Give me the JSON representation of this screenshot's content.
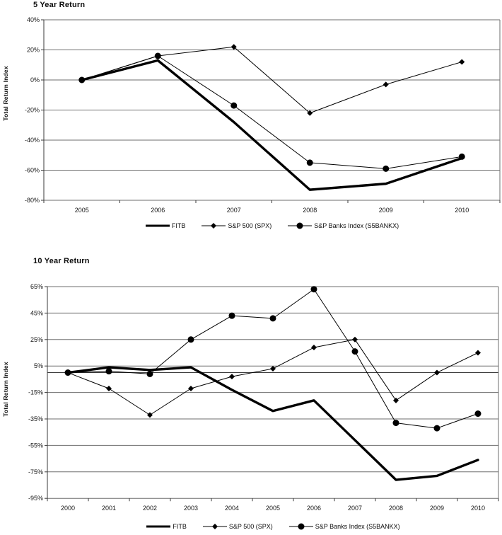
{
  "colors": {
    "series": "#000000",
    "grid": "#6e6e6e",
    "axis": "#3a3a3a",
    "text": "#161616",
    "background": "#ffffff"
  },
  "chart_data": [
    {
      "type": "line",
      "title": "5 Year Return",
      "ylabel": "Total Return Index",
      "xlabel": "",
      "categories": [
        "2005",
        "2006",
        "2007",
        "2008",
        "2009",
        "2010"
      ],
      "yticks": [
        40,
        20,
        0,
        -20,
        -40,
        -60,
        -80
      ],
      "ylim": [
        -80,
        40
      ],
      "ytick_format": "percent",
      "grid": true,
      "zero_line": false,
      "legend_position": "bottom",
      "series": [
        {
          "name": "FITB",
          "marker": "none",
          "line": "thick",
          "values": [
            0,
            13,
            -28,
            -73,
            -69,
            -52
          ]
        },
        {
          "name": "S&P 500 (SPX)",
          "marker": "diamond",
          "line": "thin",
          "values": [
            0,
            16,
            22,
            -22,
            -3,
            12
          ]
        },
        {
          "name": "S&P Banks Index (S5BANKX)",
          "marker": "circle",
          "line": "thin",
          "values": [
            0,
            16,
            -17,
            -55,
            -59,
            -51
          ]
        }
      ]
    },
    {
      "type": "line",
      "title": "10 Year Return",
      "ylabel": "Total Return Index",
      "xlabel": "",
      "categories": [
        "2000",
        "2001",
        "2002",
        "2003",
        "2004",
        "2005",
        "2006",
        "2007",
        "2008",
        "2009",
        "2010"
      ],
      "yticks": [
        65,
        45,
        25,
        5,
        -15,
        -35,
        -55,
        -75,
        -95
      ],
      "ylim": [
        -95,
        65
      ],
      "ytick_format": "percent",
      "grid": true,
      "zero_line": true,
      "legend_position": "bottom",
      "series": [
        {
          "name": "FITB",
          "marker": "none",
          "line": "thick",
          "values": [
            0,
            4,
            2,
            4,
            -13,
            -29,
            -21,
            -51,
            -81,
            -78,
            -66
          ]
        },
        {
          "name": "S&P 500 (SPX)",
          "marker": "diamond",
          "line": "thin",
          "values": [
            0,
            -12,
            -32,
            -12,
            -3,
            3,
            19,
            25,
            -21,
            0,
            15
          ]
        },
        {
          "name": "S&P Banks Index (S5BANKX)",
          "marker": "circle",
          "line": "thin",
          "values": [
            0,
            1,
            -1,
            25,
            43,
            41,
            63,
            16,
            -38,
            -42,
            -31
          ]
        }
      ]
    }
  ]
}
